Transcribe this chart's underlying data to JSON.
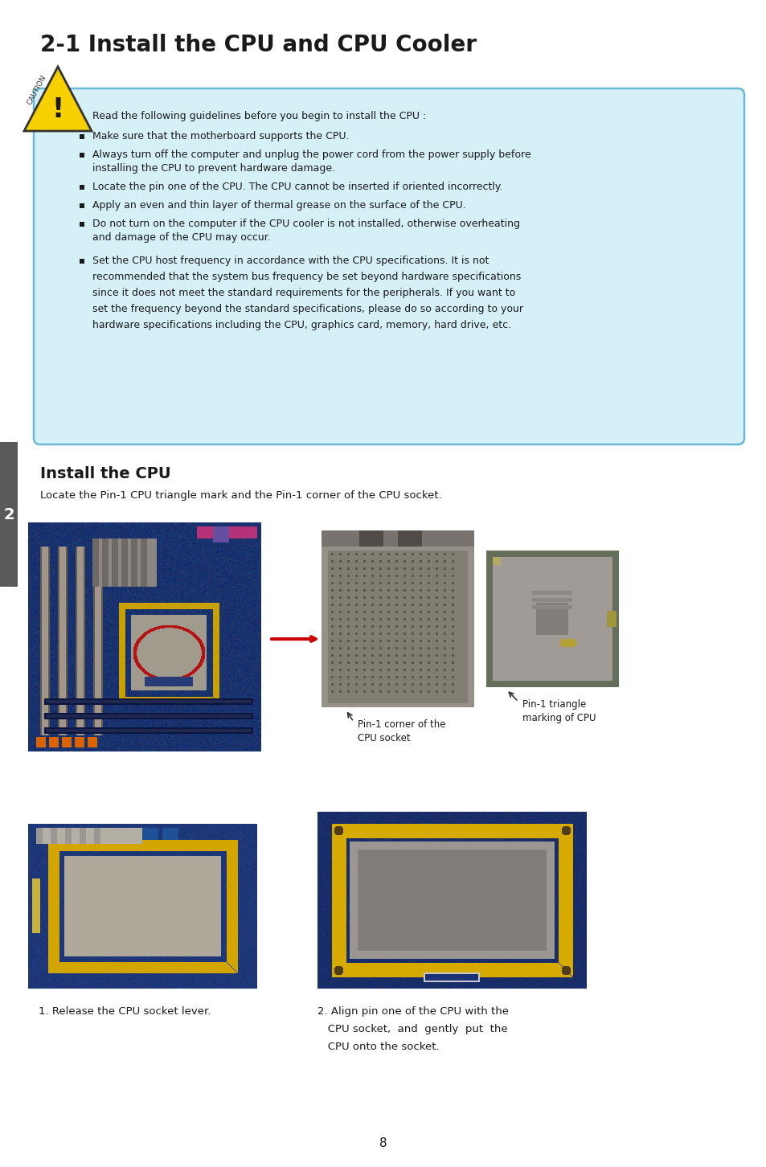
{
  "title": "2-1 Install the CPU and CPU Cooler",
  "bg_color": "#ffffff",
  "caution_bg": "#d6f0f8",
  "caution_border": "#6ab8d4",
  "install_cpu_title": "Install the CPU",
  "install_cpu_subtitle": "Locate the Pin-1 CPU triangle mark and the Pin-1 corner of the CPU socket.",
  "label1_line1": "Pin-1 corner of the",
  "label1_line2": "CPU socket",
  "label2_line1": "Pin-1 triangle",
  "label2_line2": "marking of CPU",
  "caption1": "1. Release the CPU socket lever.",
  "caption2_line1": "2. Align pin one of the CPU with the",
  "caption2_line2": "   CPU socket,  and  gently  put  the",
  "caption2_line3": "   CPU onto the socket.",
  "page_number": "8",
  "left_tab_color": "#5a5a5a",
  "left_tab_text": "2",
  "text_color": "#1a1a1a",
  "bullet_color": "#1a1a1a"
}
